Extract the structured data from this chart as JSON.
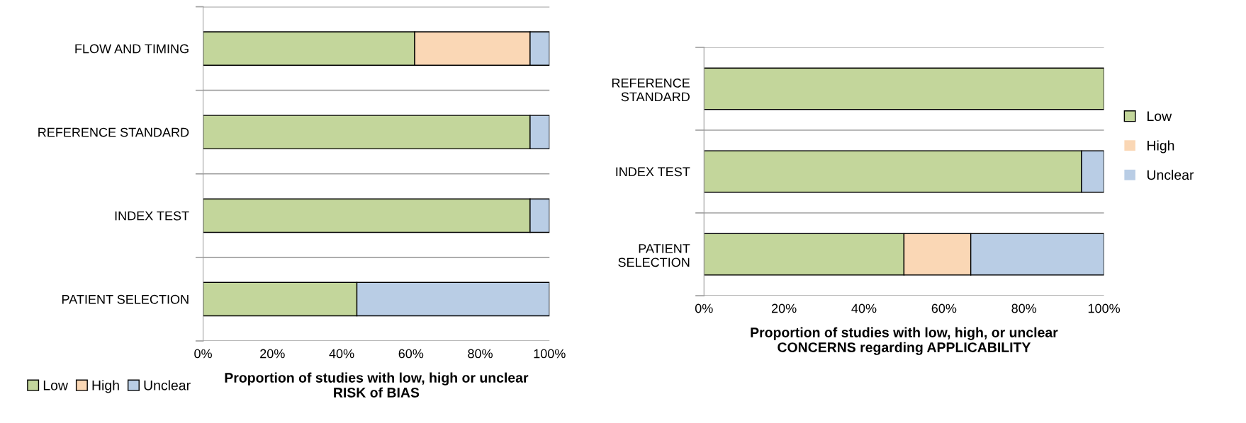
{
  "chart_data": [
    {
      "type": "bar",
      "orientation": "horizontal",
      "stacked": true,
      "xlabel": "Proportion of studies with low, high or unclear\nRISK of BIAS",
      "categories": [
        "FLOW AND TIMING",
        "REFERENCE STANDARD",
        "INDEX TEST",
        "PATIENT SELECTION"
      ],
      "series": [
        {
          "name": "Low",
          "color": "#c3d69b",
          "values": [
            61.1,
            94.4,
            94.4,
            44.4
          ]
        },
        {
          "name": "High",
          "color": "#fad7b5",
          "values": [
            33.3,
            0,
            0,
            0
          ]
        },
        {
          "name": "Unclear",
          "color": "#b9cde5",
          "values": [
            5.6,
            5.6,
            5.6,
            55.6
          ]
        }
      ],
      "xlim": [
        0,
        100
      ],
      "xticks": [
        {
          "value": 0,
          "label": "0%"
        },
        {
          "value": 20,
          "label": "20%"
        },
        {
          "value": 40,
          "label": "40%"
        },
        {
          "value": 60,
          "label": "60%"
        },
        {
          "value": 80,
          "label": "80%"
        },
        {
          "value": 100,
          "label": "100%"
        }
      ],
      "grid": "y",
      "legend": "bottom left"
    },
    {
      "type": "bar",
      "orientation": "horizontal",
      "stacked": true,
      "xlabel": "Proportion of studies with low, high, or unclear\nCONCERNS regarding APPLICABILITY",
      "categories": [
        "REFERENCE\nSTANDARD",
        "INDEX TEST",
        "PATIENT\nSELECTION"
      ],
      "series": [
        {
          "name": "Low",
          "color": "#c3d69b",
          "values": [
            100,
            94.4,
            50
          ]
        },
        {
          "name": "High",
          "color": "#fad7b5",
          "values": [
            0,
            0,
            16.7
          ]
        },
        {
          "name": "Unclear",
          "color": "#b9cde5",
          "values": [
            0,
            5.6,
            33.3
          ]
        }
      ],
      "xlim": [
        0,
        100
      ],
      "xticks": [
        {
          "value": 0,
          "label": "0%"
        },
        {
          "value": 20,
          "label": "20%"
        },
        {
          "value": 40,
          "label": "40%"
        },
        {
          "value": 60,
          "label": "60%"
        },
        {
          "value": 80,
          "label": "80%"
        },
        {
          "value": 100,
          "label": "100%"
        }
      ],
      "grid": "y",
      "legend": "right"
    }
  ]
}
